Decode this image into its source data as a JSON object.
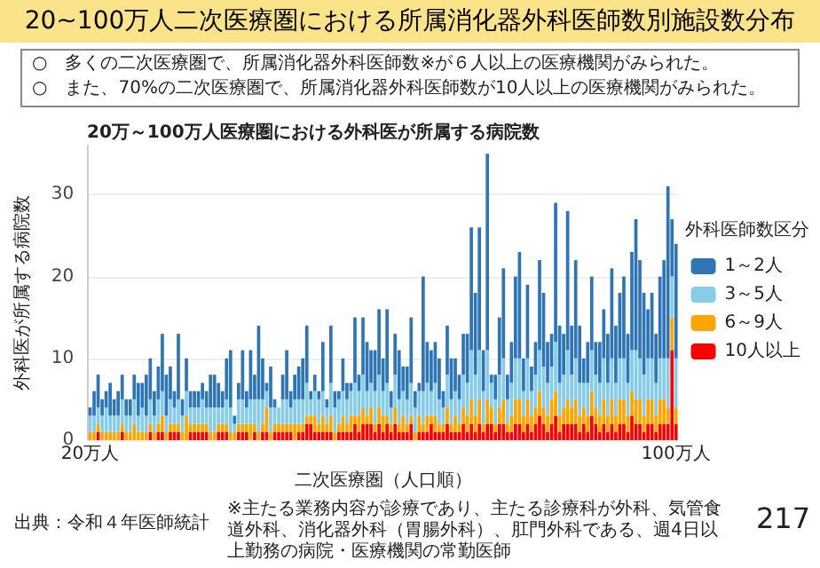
{
  "chart_data": {
    "type": "bar",
    "title": "20~100万人二次医療圏における所属消化器外科医師数別施設数分布",
    "subtitle": "20万～100万人医療圏における外科医が所属する病院数",
    "xlabel": "二次医療圏（人口順）",
    "ylabel": "外科医が所属する病院数",
    "legend_title": "外科医師数区分",
    "annotations": [
      "○　多くの二次医療圏で、所属消化器外科医師数※が６人以上の医療機関がみられた。",
      "○　また、70%の二次医療圏で、所属消化器外科医師数が10人以上の医療機関がみられた。",
      "出典：令和４年医師統計",
      "※主たる業務内容が診療であり、主たる診療科が外科、気管食道外科、消化器外科（胃腸外科）、肛門外科である、週4日以上勤務の病院・医療機関の常勤医師",
      "217"
    ],
    "categories": [
      "20万人",
      null,
      null,
      null,
      null,
      null,
      null,
      null,
      null,
      null,
      null,
      null,
      null,
      null,
      null,
      null,
      null,
      null,
      null,
      null,
      null,
      null,
      null,
      null,
      null,
      null,
      null,
      null,
      null,
      null,
      null,
      null,
      null,
      null,
      null,
      null,
      null,
      null,
      null,
      null,
      null,
      null,
      null,
      null,
      null,
      null,
      null,
      null,
      null,
      null,
      null,
      null,
      null,
      null,
      null,
      null,
      null,
      null,
      null,
      null,
      null,
      null,
      null,
      null,
      null,
      null,
      null,
      null,
      null,
      null,
      null,
      null,
      null,
      null,
      null,
      null,
      null,
      null,
      null,
      null,
      null,
      null,
      null,
      null,
      null,
      null,
      null,
      null,
      null,
      null,
      null,
      null,
      null,
      null,
      null,
      null,
      null,
      null,
      null,
      null,
      null,
      null,
      null,
      null,
      null,
      null,
      null,
      null,
      null,
      null,
      null,
      null,
      null,
      null,
      null,
      null,
      null,
      null,
      null,
      null,
      null,
      null,
      null,
      null,
      null,
      null,
      null,
      null,
      null,
      null,
      null,
      null,
      null,
      null,
      null,
      null,
      null,
      null,
      null,
      null,
      null,
      null,
      null,
      null,
      null,
      null,
      "100万人"
    ],
    "stacked": true,
    "ylim": [
      0,
      36
    ],
    "yticks": [
      0,
      10,
      20,
      30
    ],
    "grid": "y",
    "legend": "right",
    "series": [
      {
        "name": "10人以上",
        "color": "#ff0000",
        "values": [
          0,
          0,
          1,
          0,
          0,
          0,
          0,
          0,
          1,
          0,
          0,
          0,
          0,
          0,
          0,
          1,
          0,
          1,
          1,
          0,
          1,
          1,
          1,
          0,
          0,
          1,
          1,
          1,
          1,
          1,
          0,
          0,
          1,
          1,
          1,
          0,
          0,
          1,
          1,
          1,
          0,
          1,
          0,
          1,
          1,
          0,
          1,
          1,
          1,
          1,
          1,
          0,
          1,
          1,
          2,
          2,
          1,
          1,
          1,
          1,
          1,
          0,
          1,
          1,
          1,
          1,
          2,
          1,
          2,
          2,
          2,
          1,
          2,
          1,
          2,
          1,
          2,
          1,
          1,
          1,
          2,
          0,
          1,
          1,
          1,
          2,
          1,
          1,
          1,
          2,
          1,
          1,
          1,
          2,
          1,
          2,
          1,
          2,
          1,
          2,
          2,
          1,
          2,
          2,
          1,
          1,
          2,
          2,
          1,
          2,
          1,
          2,
          3,
          2,
          1,
          2,
          3,
          1,
          2,
          2,
          2,
          2,
          1,
          2,
          1,
          3,
          2,
          1,
          2,
          1,
          2,
          1,
          2,
          2,
          1,
          3,
          2,
          2,
          1,
          2,
          2,
          1,
          2,
          2,
          2,
          11,
          2
        ]
      },
      {
        "name": "6～9人",
        "color": "#ffa500",
        "values": [
          1,
          1,
          1,
          1,
          1,
          1,
          1,
          1,
          1,
          1,
          1,
          2,
          1,
          1,
          1,
          1,
          1,
          1,
          2,
          1,
          1,
          1,
          1,
          1,
          3,
          1,
          1,
          1,
          1,
          1,
          1,
          1,
          1,
          1,
          1,
          1,
          1,
          1,
          1,
          1,
          2,
          1,
          1,
          1,
          3,
          1,
          1,
          1,
          1,
          1,
          1,
          2,
          1,
          1,
          1,
          1,
          2,
          1,
          2,
          1,
          2,
          1,
          1,
          2,
          1,
          2,
          1,
          2,
          2,
          1,
          2,
          1,
          2,
          2,
          1,
          1,
          2,
          1,
          2,
          1,
          1,
          1,
          2,
          1,
          2,
          1,
          2,
          1,
          1,
          2,
          1,
          2,
          1,
          2,
          2,
          3,
          2,
          3,
          1,
          3,
          2,
          1,
          2,
          3,
          1,
          2,
          3,
          3,
          2,
          3,
          2,
          2,
          3,
          2,
          2,
          3,
          3,
          2,
          2,
          3,
          2,
          3,
          2,
          2,
          2,
          3,
          2,
          2,
          3,
          2,
          3,
          2,
          3,
          3,
          2,
          3,
          3,
          3,
          2,
          3,
          3,
          2,
          3,
          3,
          2,
          4,
          2
        ]
      },
      {
        "name": "3～5人",
        "color": "#87cdea",
        "values": [
          2,
          2,
          2,
          2,
          3,
          2,
          2,
          2,
          3,
          2,
          2,
          3,
          2,
          3,
          2,
          3,
          2,
          3,
          3,
          2,
          3,
          2,
          3,
          2,
          3,
          2,
          2,
          2,
          3,
          2,
          3,
          3,
          2,
          2,
          3,
          3,
          1,
          3,
          3,
          2,
          3,
          3,
          4,
          3,
          2,
          3,
          2,
          2,
          3,
          3,
          2,
          3,
          3,
          3,
          4,
          2,
          3,
          3,
          3,
          2,
          4,
          3,
          3,
          3,
          3,
          3,
          4,
          3,
          4,
          3,
          3,
          4,
          4,
          3,
          4,
          2,
          4,
          3,
          3,
          3,
          4,
          3,
          3,
          4,
          4,
          3,
          4,
          3,
          2,
          4,
          3,
          3,
          3,
          4,
          4,
          6,
          5,
          6,
          4,
          6,
          3,
          3,
          4,
          5,
          3,
          4,
          5,
          5,
          3,
          5,
          3,
          4,
          5,
          5,
          4,
          4,
          6,
          4,
          4,
          6,
          4,
          5,
          4,
          3,
          4,
          5,
          4,
          4,
          5,
          4,
          5,
          4,
          5,
          5,
          4,
          5,
          6,
          5,
          5,
          5,
          5,
          4,
          5,
          5,
          6,
          5,
          6
        ]
      },
      {
        "name": "1～2人",
        "color": "#2e75b6",
        "values": [
          1,
          3,
          4,
          2,
          2,
          4,
          2,
          3,
          3,
          2,
          2,
          3,
          4,
          3,
          5,
          5,
          3,
          4,
          7,
          5,
          4,
          2,
          8,
          2,
          4,
          2,
          2,
          2,
          2,
          2,
          4,
          4,
          3,
          2,
          5,
          7,
          1,
          2,
          6,
          2,
          6,
          3,
          9,
          5,
          1,
          5,
          1,
          0,
          3,
          6,
          2,
          3,
          4,
          5,
          7,
          1,
          2,
          1,
          6,
          1,
          7,
          2,
          1,
          4,
          2,
          1,
          8,
          2,
          7,
          6,
          4,
          5,
          8,
          4,
          9,
          2,
          5,
          6,
          3,
          4,
          8,
          2,
          1,
          14,
          5,
          5,
          5,
          5,
          2,
          6,
          5,
          4,
          3,
          5,
          6,
          15,
          10,
          15,
          5,
          24,
          1,
          3,
          7,
          11,
          3,
          5,
          10,
          13,
          4,
          9,
          3,
          4,
          11,
          9,
          5,
          4,
          17,
          7,
          5,
          17,
          6,
          12,
          7,
          3,
          5,
          9,
          4,
          5,
          6,
          6,
          11,
          7,
          8,
          10,
          6,
          12,
          16,
          12,
          10,
          6,
          8,
          6,
          10,
          12,
          21,
          7,
          14
        ]
      }
    ]
  }
}
